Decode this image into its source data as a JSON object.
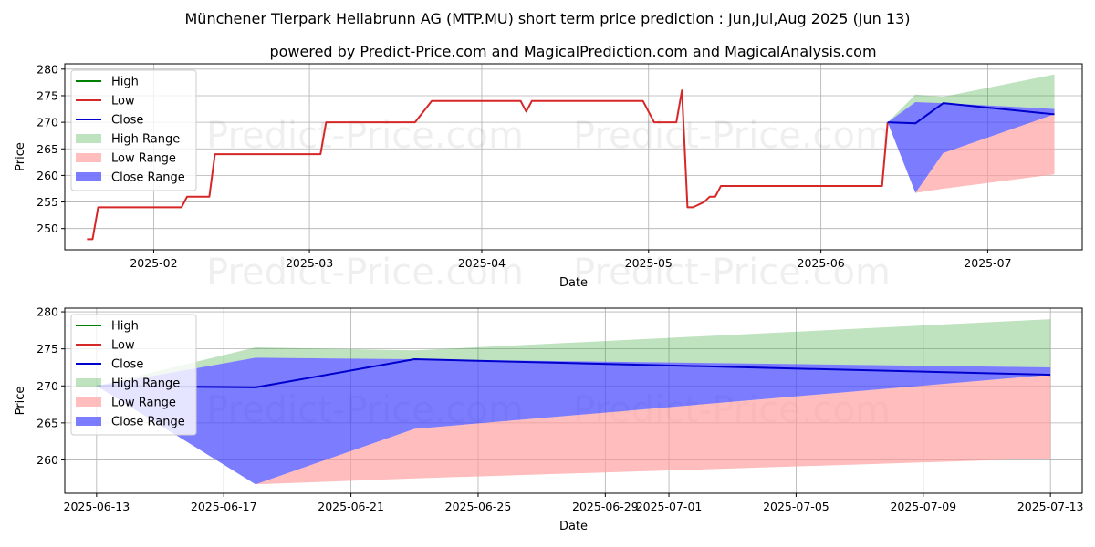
{
  "title": "Münchener Tierpark Hellabrunn AG (MTP.MU) short term price prediction : Jun,Jul,Aug 2025 (Jun 13)",
  "subtitle": "powered by Predict-Price.com and MagicalPrediction.com and MagicalAnalysis.com",
  "watermark": "Predict-Price.com",
  "colors": {
    "high": "#008000",
    "low": "#d62728",
    "close": "#0000cc",
    "high_range": "#2ca02c",
    "low_range": "#ff9999",
    "close_range": "#4444ff"
  },
  "chart_data": [
    {
      "type": "line",
      "xlabel": "Date",
      "ylabel": "Price",
      "xlim": [
        "2025-01-16",
        "2025-07-18"
      ],
      "ylim": [
        246,
        281
      ],
      "yticks": [
        250,
        255,
        260,
        265,
        270,
        275,
        280
      ],
      "xticks": [
        "2025-02-01",
        "2025-03-01",
        "2025-04-01",
        "2025-05-01",
        "2025-06-01",
        "2025-07-01"
      ],
      "xtick_labels": [
        "2025-02",
        "2025-03",
        "2025-04",
        "2025-05",
        "2025-06",
        "2025-07"
      ],
      "legend": [
        "High",
        "Low",
        "Close",
        "High Range",
        "Low Range",
        "Close Range"
      ],
      "legend_loc": "top-left",
      "grid": true,
      "history": {
        "name": "Low",
        "points": [
          [
            "2025-01-20",
            248
          ],
          [
            "2025-01-21",
            248
          ],
          [
            "2025-01-22",
            254
          ],
          [
            "2025-02-06",
            254
          ],
          [
            "2025-02-07",
            256
          ],
          [
            "2025-02-11",
            256
          ],
          [
            "2025-02-12",
            264
          ],
          [
            "2025-03-03",
            264
          ],
          [
            "2025-03-04",
            270
          ],
          [
            "2025-03-20",
            270
          ],
          [
            "2025-03-23",
            274
          ],
          [
            "2025-04-08",
            274
          ],
          [
            "2025-04-09",
            272
          ],
          [
            "2025-04-10",
            274
          ],
          [
            "2025-04-30",
            274
          ],
          [
            "2025-05-02",
            270
          ],
          [
            "2025-05-06",
            270
          ],
          [
            "2025-05-07",
            276
          ],
          [
            "2025-05-08",
            254
          ],
          [
            "2025-05-09",
            254
          ],
          [
            "2025-05-11",
            255
          ],
          [
            "2025-05-12",
            256
          ],
          [
            "2025-05-13",
            256
          ],
          [
            "2025-05-14",
            258
          ],
          [
            "2025-06-11",
            258
          ],
          [
            "2025-06-12",
            258
          ],
          [
            "2025-06-13",
            270
          ]
        ]
      },
      "forecast": {
        "dates": [
          "2025-06-13",
          "2025-06-18",
          "2025-06-23",
          "2025-07-13"
        ],
        "close": [
          270,
          269.8,
          273.6,
          271.5
        ],
        "high_range": [
          [
            270,
            270
          ],
          [
            273.8,
            275.2
          ],
          [
            273.6,
            274.8
          ],
          [
            272.5,
            279
          ]
        ],
        "low_range": [
          [
            270,
            270
          ],
          [
            256.7,
            256.7
          ],
          [
            257.5,
            264.2
          ],
          [
            260.2,
            271.5
          ]
        ],
        "close_range": [
          [
            270,
            270
          ],
          [
            256.7,
            273.8
          ],
          [
            264.2,
            273.6
          ],
          [
            271.5,
            272.5
          ]
        ]
      }
    },
    {
      "type": "line",
      "xlabel": "Date",
      "ylabel": "Price",
      "xlim": [
        "2025-06-12",
        "2025-07-14"
      ],
      "ylim": [
        255.5,
        280.5
      ],
      "yticks": [
        260,
        265,
        270,
        275,
        280
      ],
      "xticks": [
        "2025-06-13",
        "2025-06-17",
        "2025-06-21",
        "2025-06-25",
        "2025-06-29",
        "2025-07-01",
        "2025-07-05",
        "2025-07-09",
        "2025-07-13"
      ],
      "xtick_labels": [
        "2025-06-13",
        "2025-06-17",
        "2025-06-21",
        "2025-06-25",
        "2025-06-29",
        "2025-07-01",
        "2025-07-05",
        "2025-07-09",
        "2025-07-13"
      ],
      "legend": [
        "High",
        "Low",
        "Close",
        "High Range",
        "Low Range",
        "Close Range"
      ],
      "legend_loc": "top-left",
      "grid": true,
      "forecast": {
        "dates": [
          "2025-06-13",
          "2025-06-18",
          "2025-06-23",
          "2025-07-13"
        ],
        "close": [
          270,
          269.8,
          273.6,
          271.5
        ],
        "high_range": [
          [
            270,
            270
          ],
          [
            273.8,
            275.2
          ],
          [
            273.6,
            274.8
          ],
          [
            272.5,
            279
          ]
        ],
        "low_range": [
          [
            270,
            270
          ],
          [
            256.7,
            256.7
          ],
          [
            257.5,
            264.2
          ],
          [
            260.2,
            271.5
          ]
        ],
        "close_range": [
          [
            270,
            270
          ],
          [
            256.7,
            273.8
          ],
          [
            264.2,
            273.6
          ],
          [
            271.5,
            272.5
          ]
        ]
      }
    }
  ]
}
